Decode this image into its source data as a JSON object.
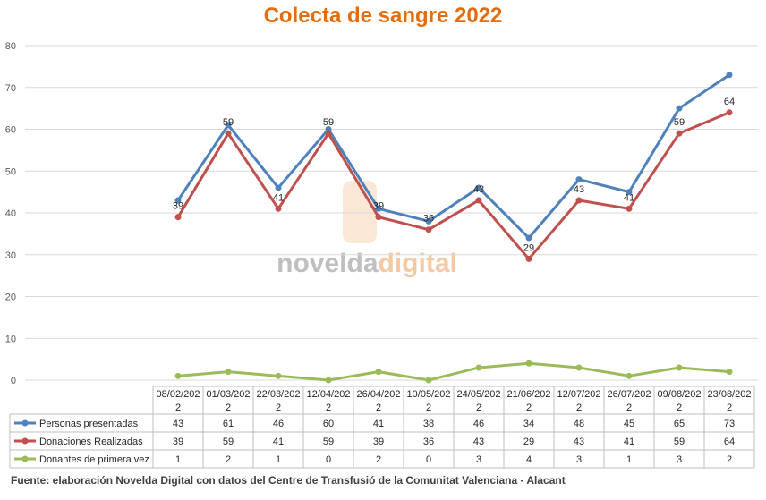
{
  "chart_data": {
    "type": "line",
    "title": "Colecta de sangre 2022",
    "ylim": [
      0,
      80
    ],
    "yticks": [
      0,
      10,
      20,
      30,
      40,
      50,
      60,
      70,
      80
    ],
    "grid": true,
    "legend": "table-below",
    "categories": [
      "08/02/2022",
      "01/03/2022",
      "22/03/2022",
      "12/04/2022",
      "26/04/2022",
      "10/05/2022",
      "24/05/2022",
      "21/06/2022",
      "12/07/2022",
      "26/07/2022",
      "09/08/2022",
      "23/08/2022"
    ],
    "series": [
      {
        "name": "Personas presentadas",
        "color": "#4F81BD",
        "values": [
          43,
          61,
          46,
          60,
          41,
          38,
          46,
          34,
          48,
          45,
          65,
          73
        ]
      },
      {
        "name": "Donaciones Realizadas",
        "color": "#C0504D",
        "values": [
          39,
          59,
          41,
          59,
          39,
          36,
          43,
          29,
          43,
          41,
          59,
          64
        ]
      },
      {
        "name": "Donantes de primera vez",
        "color": "#9BBB59",
        "values": [
          1,
          2,
          1,
          0,
          2,
          0,
          3,
          4,
          3,
          1,
          3,
          2
        ]
      }
    ],
    "data_labels": {
      "series_index": 1,
      "values": [
        39,
        59,
        41,
        59,
        39,
        36,
        43,
        29,
        43,
        41,
        59,
        64
      ]
    }
  },
  "watermark": {
    "word1": "novelda",
    "word2": "digital",
    "color1": "#BFBFBF",
    "color2": "#F6C9A5"
  },
  "source": "Fuente: elaboración Novelda Digital con datos del Centre de Transfusió de la Comunitat Valenciana - Alacant"
}
